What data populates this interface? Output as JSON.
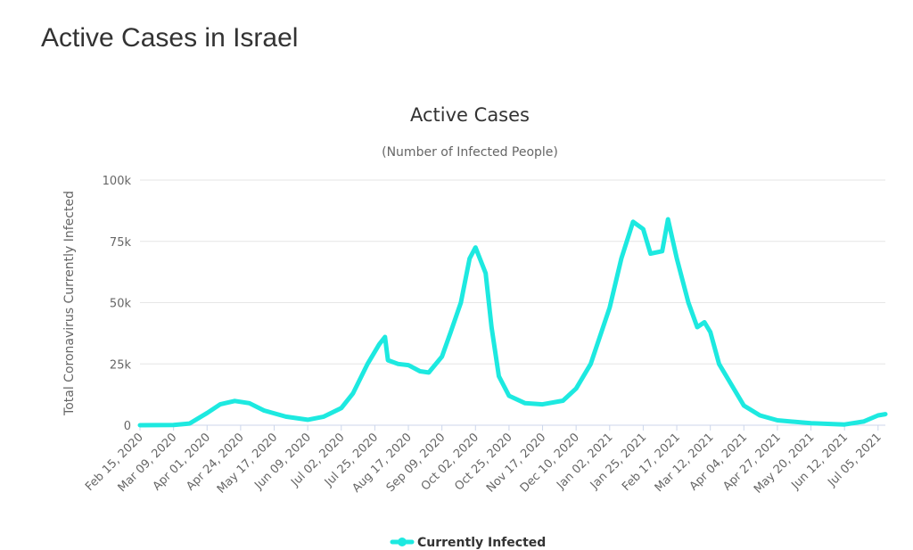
{
  "page": {
    "title": "Active Cases in Israel"
  },
  "chart_data": {
    "type": "line",
    "title": "Active Cases",
    "subtitle": "(Number of Infected People)",
    "ylabel": "Total Coronavirus Currently Infected",
    "xlabel": "",
    "ylim": [
      0,
      100000
    ],
    "y_ticks": [
      0,
      25000,
      50000,
      75000,
      100000
    ],
    "y_tick_labels": [
      "0",
      "25k",
      "50k",
      "75k",
      "100k"
    ],
    "x_tick_labels": [
      "Feb 15, 2020",
      "Mar 09, 2020",
      "Apr 01, 2020",
      "Apr 24, 2020",
      "May 17, 2020",
      "Jun 09, 2020",
      "Jul 02, 2020",
      "Jul 25, 2020",
      "Aug 17, 2020",
      "Sep 09, 2020",
      "Oct 02, 2020",
      "Oct 25, 2020",
      "Nov 17, 2020",
      "Dec 10, 2020",
      "Jan 02, 2021",
      "Jan 25, 2021",
      "Feb 17, 2021",
      "Mar 12, 2021",
      "Apr 04, 2021",
      "Apr 27, 2021",
      "May 20, 2021",
      "Jun 12, 2021",
      "Jul 05, 2021"
    ],
    "grid": true,
    "legend_position": "bottom-center",
    "series": [
      {
        "name": "Currently Infected",
        "color": "#1de9e0",
        "points": [
          [
            "Feb 15, 2020",
            0
          ],
          [
            "Mar 09, 2020",
            100
          ],
          [
            "Mar 20, 2020",
            700
          ],
          [
            "Apr 01, 2020",
            5000
          ],
          [
            "Apr 10, 2020",
            8500
          ],
          [
            "Apr 20, 2020",
            9900
          ],
          [
            "Apr 30, 2020",
            9000
          ],
          [
            "May 10, 2020",
            6000
          ],
          [
            "May 25, 2020",
            3500
          ],
          [
            "Jun 09, 2020",
            2200
          ],
          [
            "Jun 20, 2020",
            3500
          ],
          [
            "Jul 02, 2020",
            7000
          ],
          [
            "Jul 10, 2020",
            13000
          ],
          [
            "Jul 20, 2020",
            25000
          ],
          [
            "Jul 28, 2020",
            33000
          ],
          [
            "Aug 01, 2020",
            36000
          ],
          [
            "Aug 03, 2020",
            26500
          ],
          [
            "Aug 10, 2020",
            25000
          ],
          [
            "Aug 17, 2020",
            24500
          ],
          [
            "Aug 25, 2020",
            22000
          ],
          [
            "Aug 31, 2020",
            21500
          ],
          [
            "Sep 09, 2020",
            28000
          ],
          [
            "Sep 15, 2020",
            38000
          ],
          [
            "Sep 22, 2020",
            50000
          ],
          [
            "Sep 28, 2020",
            68000
          ],
          [
            "Oct 02, 2020",
            72500
          ],
          [
            "Oct 09, 2020",
            62000
          ],
          [
            "Oct 13, 2020",
            40000
          ],
          [
            "Oct 18, 2020",
            20000
          ],
          [
            "Oct 25, 2020",
            12000
          ],
          [
            "Nov 05, 2020",
            9000
          ],
          [
            "Nov 17, 2020",
            8500
          ],
          [
            "Dec 01, 2020",
            10000
          ],
          [
            "Dec 10, 2020",
            15000
          ],
          [
            "Dec 20, 2020",
            25000
          ],
          [
            "Jan 02, 2021",
            48000
          ],
          [
            "Jan 10, 2021",
            68000
          ],
          [
            "Jan 18, 2021",
            83000
          ],
          [
            "Jan 25, 2021",
            80000
          ],
          [
            "Jan 30, 2021",
            70000
          ],
          [
            "Feb 07, 2021",
            71000
          ],
          [
            "Feb 11, 2021",
            84000
          ],
          [
            "Feb 17, 2021",
            68000
          ],
          [
            "Feb 25, 2021",
            50000
          ],
          [
            "Mar 03, 2021",
            40000
          ],
          [
            "Mar 08, 2021",
            42000
          ],
          [
            "Mar 12, 2021",
            38000
          ],
          [
            "Mar 18, 2021",
            25000
          ],
          [
            "Apr 04, 2021",
            8000
          ],
          [
            "Apr 15, 2021",
            4000
          ],
          [
            "Apr 27, 2021",
            2000
          ],
          [
            "May 20, 2021",
            800
          ],
          [
            "Jun 12, 2021",
            300
          ],
          [
            "Jun 25, 2021",
            1500
          ],
          [
            "Jul 05, 2021",
            4000
          ],
          [
            "Jul 10, 2021",
            4500
          ]
        ]
      }
    ]
  }
}
